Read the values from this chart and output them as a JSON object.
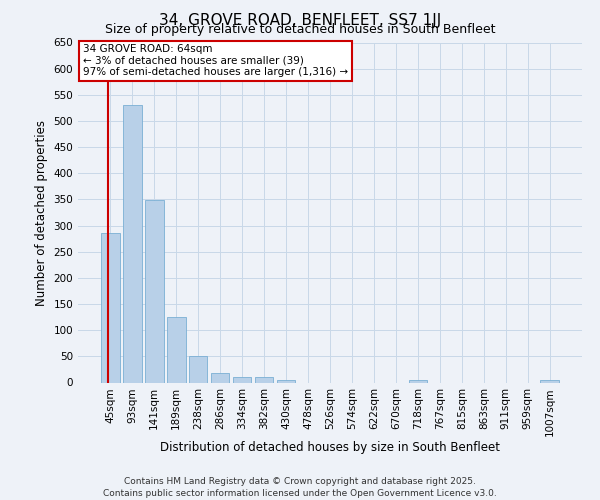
{
  "title": "34, GROVE ROAD, BENFLEET, SS7 1JJ",
  "subtitle": "Size of property relative to detached houses in South Benfleet",
  "xlabel": "Distribution of detached houses by size in South Benfleet",
  "ylabel": "Number of detached properties",
  "categories": [
    "45sqm",
    "93sqm",
    "141sqm",
    "189sqm",
    "238sqm",
    "286sqm",
    "334sqm",
    "382sqm",
    "430sqm",
    "478sqm",
    "526sqm",
    "574sqm",
    "622sqm",
    "670sqm",
    "718sqm",
    "767sqm",
    "815sqm",
    "863sqm",
    "911sqm",
    "959sqm",
    "1007sqm"
  ],
  "values": [
    285,
    530,
    348,
    125,
    50,
    18,
    10,
    10,
    5,
    0,
    0,
    0,
    0,
    0,
    5,
    0,
    0,
    0,
    0,
    0,
    4
  ],
  "bar_color": "#b8d0e8",
  "bar_edge_color": "#7aafd4",
  "annotation_text": "34 GROVE ROAD: 64sqm\n← 3% of detached houses are smaller (39)\n97% of semi-detached houses are larger (1,316) →",
  "annotation_box_color": "#ffffff",
  "annotation_box_edge_color": "#cc0000",
  "vline_color": "#cc0000",
  "ylim": [
    0,
    650
  ],
  "yticks": [
    0,
    50,
    100,
    150,
    200,
    250,
    300,
    350,
    400,
    450,
    500,
    550,
    600,
    650
  ],
  "grid_color": "#c8d8e8",
  "background_color": "#eef2f8",
  "footer": "Contains HM Land Registry data © Crown copyright and database right 2025.\nContains public sector information licensed under the Open Government Licence v3.0.",
  "title_fontsize": 11,
  "subtitle_fontsize": 9,
  "xlabel_fontsize": 8.5,
  "ylabel_fontsize": 8.5,
  "tick_fontsize": 7.5,
  "footer_fontsize": 6.5,
  "annotation_fontsize": 7.5
}
